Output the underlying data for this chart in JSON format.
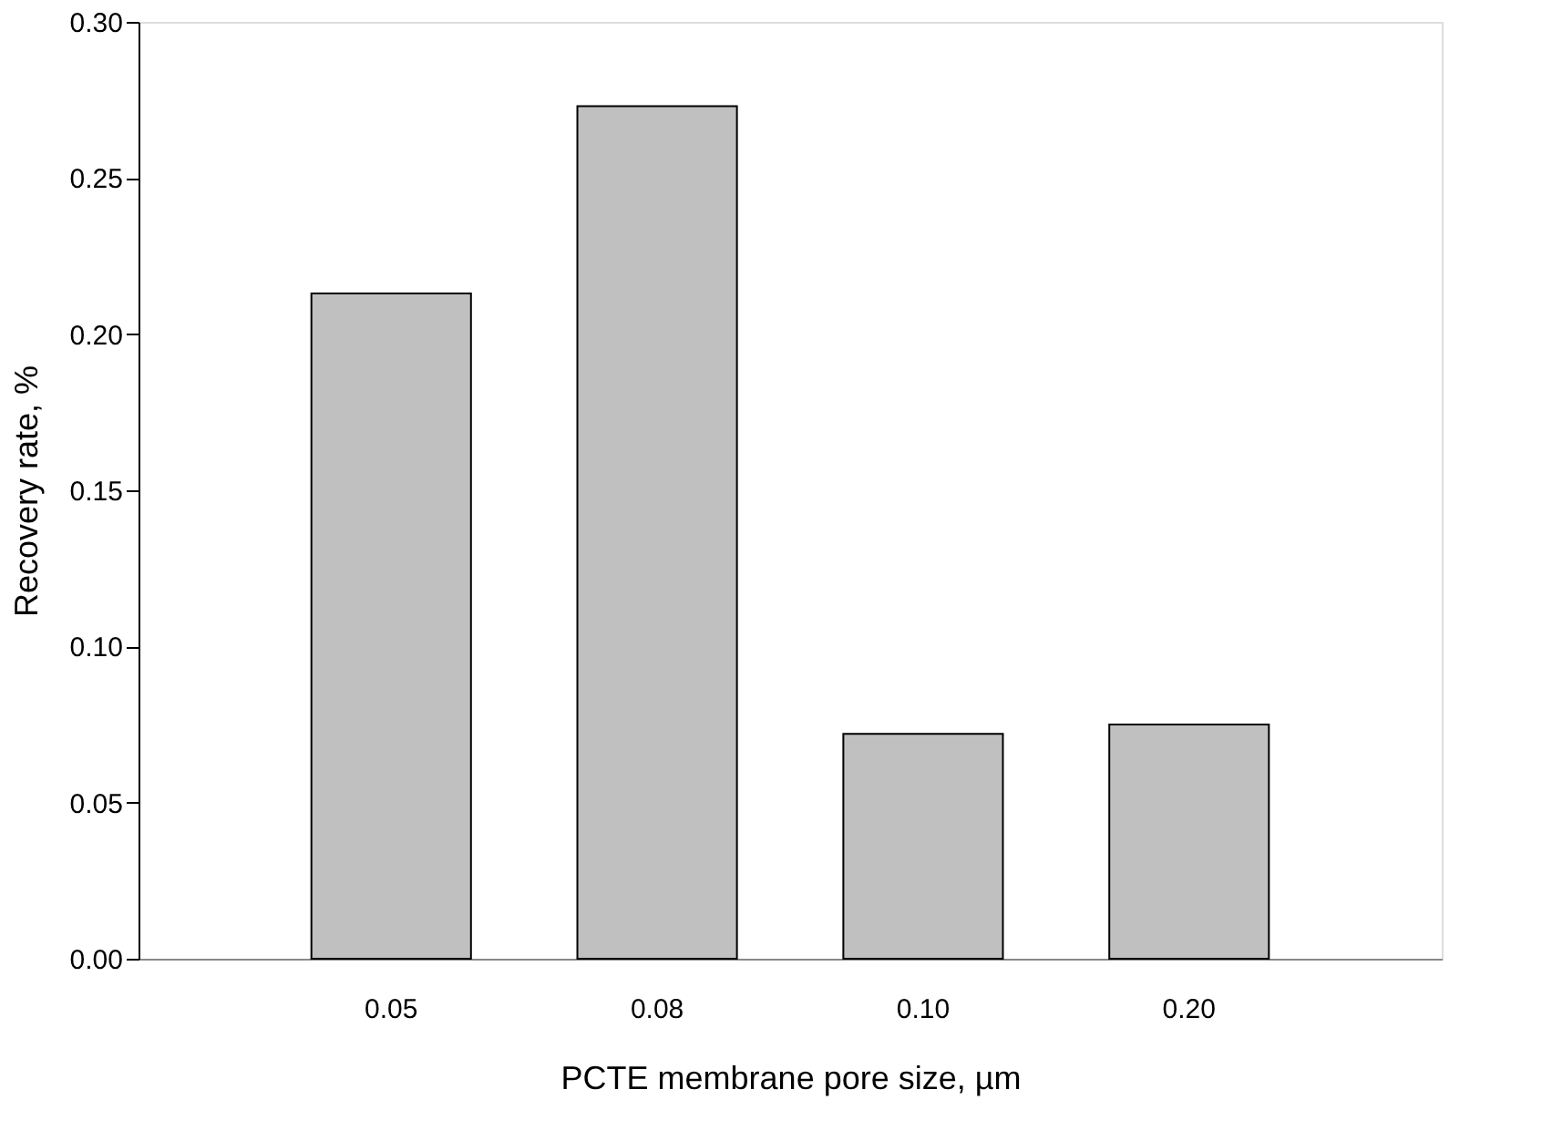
{
  "chart_data": {
    "type": "bar",
    "xlabel": "PCTE membrane pore size, µm",
    "ylabel": "Recovery rate, %",
    "categories": [
      "0.05",
      "0.08",
      "0.10",
      "0.20"
    ],
    "values": [
      0.213,
      0.273,
      0.072,
      0.075
    ],
    "color": "#c0c0c0",
    "ylim": [
      0,
      0.3
    ],
    "yticks": [
      {
        "value": 0,
        "label": "0.00"
      },
      {
        "value": 0.05,
        "label": "0.05"
      },
      {
        "value": 0.1,
        "label": "0.10"
      },
      {
        "value": 0.15,
        "label": "0.15"
      },
      {
        "value": 0.2,
        "label": "0.20"
      },
      {
        "value": 0.25,
        "label": "0.25"
      },
      {
        "value": 0.3,
        "label": "0.30"
      }
    ],
    "grid": false
  }
}
